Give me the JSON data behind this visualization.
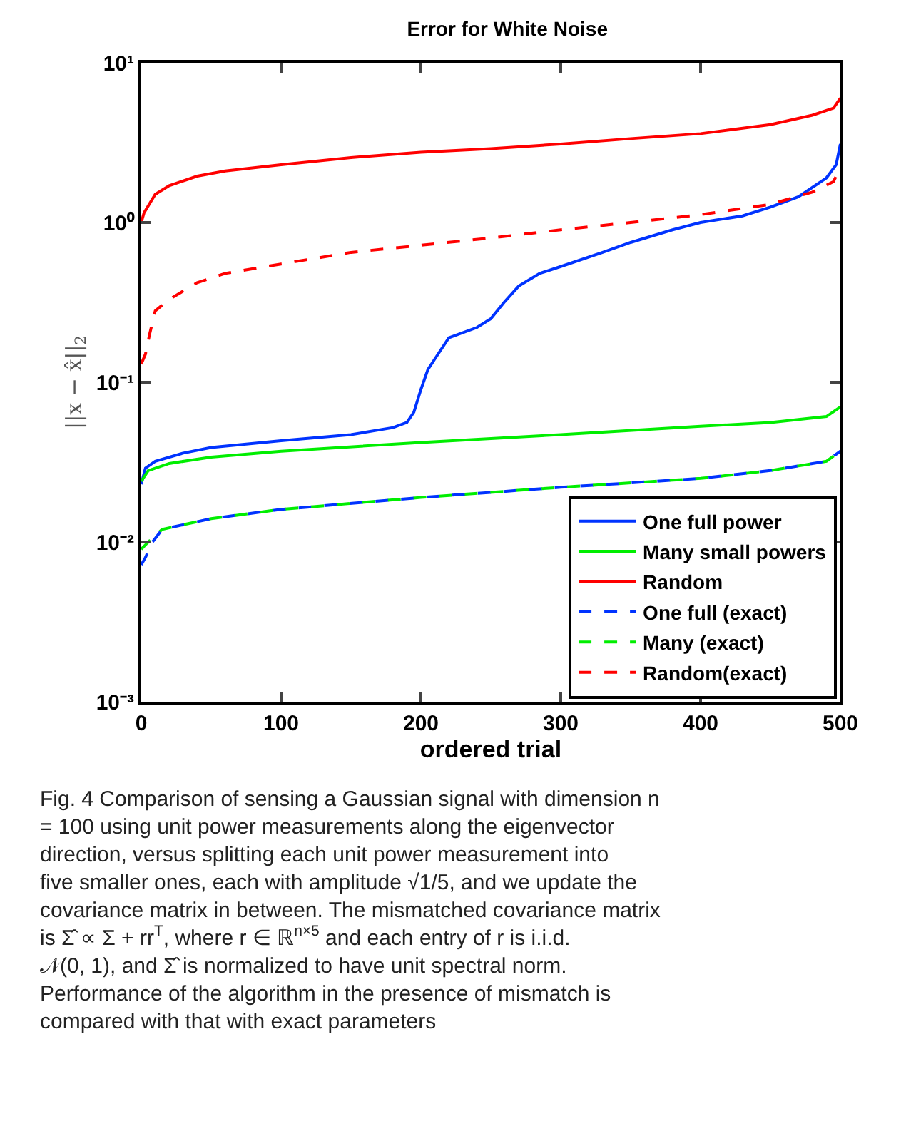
{
  "chart_data": {
    "type": "line",
    "title": "Error for White Noise",
    "xlabel": "ordered trial",
    "ylabel": "||x − x̂||$_{2}$",
    "log": "y",
    "legend": "bottom right",
    "marker": "none",
    "xlim": [
      0,
      500
    ],
    "xticks": [
      0,
      100,
      200,
      300,
      400,
      500
    ],
    "ylim": [
      0.001,
      10
    ],
    "yticks": [
      {
        "value": 0.001,
        "label": "10⁻³"
      },
      {
        "value": 0.01,
        "label": "10⁻²"
      },
      {
        "value": 0.1,
        "label": "10⁻¹"
      },
      {
        "value": 1,
        "label": "10⁰"
      },
      {
        "value": 10,
        "label": "10¹"
      }
    ],
    "series": [
      {
        "name": "One full power",
        "color": "#0033ff",
        "line_style": "solid",
        "x": [
          0,
          3,
          10,
          30,
          50,
          100,
          150,
          180,
          190,
          195,
          200,
          205,
          210,
          220,
          240,
          250,
          260,
          270,
          285,
          300,
          330,
          350,
          380,
          400,
          430,
          450,
          470,
          490,
          497,
          500
        ],
        "values": [
          0.023,
          0.029,
          0.032,
          0.036,
          0.039,
          0.043,
          0.047,
          0.052,
          0.056,
          0.065,
          0.09,
          0.12,
          0.14,
          0.19,
          0.22,
          0.25,
          0.32,
          0.4,
          0.48,
          0.53,
          0.65,
          0.75,
          0.9,
          1.0,
          1.1,
          1.25,
          1.45,
          1.9,
          2.3,
          3.1
        ]
      },
      {
        "name": "Many small powers",
        "color": "#00ee00",
        "line_style": "solid",
        "x": [
          0,
          5,
          20,
          50,
          100,
          200,
          300,
          400,
          450,
          490,
          500
        ],
        "values": [
          0.024,
          0.028,
          0.031,
          0.034,
          0.037,
          0.042,
          0.047,
          0.053,
          0.056,
          0.061,
          0.07
        ]
      },
      {
        "name": "Random",
        "color": "#ff0000",
        "line_style": "solid",
        "x": [
          0,
          2,
          10,
          20,
          40,
          60,
          100,
          150,
          200,
          250,
          300,
          350,
          400,
          450,
          480,
          495,
          500
        ],
        "values": [
          1.0,
          1.15,
          1.5,
          1.7,
          1.95,
          2.1,
          2.3,
          2.55,
          2.75,
          2.9,
          3.1,
          3.35,
          3.6,
          4.1,
          4.7,
          5.2,
          6.0
        ]
      },
      {
        "name": "One full (exact)",
        "color": "#0033ff",
        "line_style": "dashed",
        "x": [
          0,
          3,
          8,
          15,
          50,
          100,
          200,
          300,
          400,
          450,
          490,
          500
        ],
        "values": [
          0.0072,
          0.008,
          0.01,
          0.012,
          0.014,
          0.016,
          0.019,
          0.022,
          0.025,
          0.028,
          0.032,
          0.037
        ]
      },
      {
        "name": "Many (exact)",
        "color": "#00ee00",
        "line_style": "dashed",
        "x": [
          0,
          5,
          15,
          50,
          100,
          200,
          300,
          400,
          450,
          490,
          500
        ],
        "values": [
          0.009,
          0.01,
          0.012,
          0.014,
          0.016,
          0.019,
          0.022,
          0.025,
          0.028,
          0.032,
          0.037
        ]
      },
      {
        "name": "Random(exact)",
        "color": "#ff0000",
        "line_style": "dashed",
        "x": [
          0,
          3,
          6,
          10,
          20,
          40,
          60,
          100,
          150,
          200,
          250,
          300,
          350,
          400,
          450,
          480,
          495,
          500
        ],
        "values": [
          0.13,
          0.15,
          0.2,
          0.28,
          0.33,
          0.42,
          0.48,
          0.55,
          0.65,
          0.72,
          0.8,
          0.9,
          1.0,
          1.12,
          1.3,
          1.55,
          1.8,
          2.2
        ]
      }
    ],
    "annotations": [
      "Fig. 4 Comparison of sensing a Gaussian signal with dimension n = 100 using unit power measurements along the eigenvector direction, versus splitting each unit power measurement into five smaller ones, each with amplitude √1/5, and we update the covariance matrix in between. The mismatched covariance matrix is Σ̂ ∝ Σ + rr$^{T}$, where r ∈ ℝ$^{n×5}$ and each entry of r is i.i.d. 𝒩(0, 1), and Σ̂ is normalized to have unit spectral norm. Performance of the algorithm in the presence of mismatch is compared with that with exact parameters"
    ]
  }
}
